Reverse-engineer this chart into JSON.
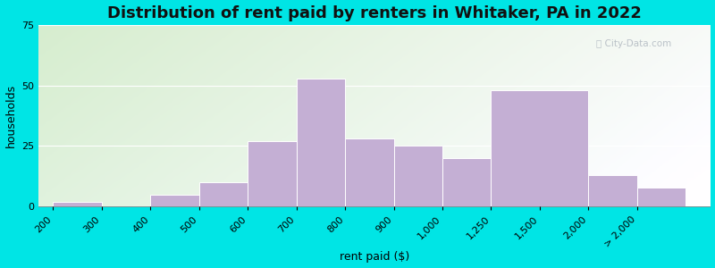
{
  "title": "Distribution of rent paid by renters in Whitaker, PA in 2022",
  "xlabel": "rent paid ($)",
  "ylabel": "households",
  "bar_color": "#c4afd4",
  "bar_edgecolor": "#ffffff",
  "background_outer": "#00e5e5",
  "ylim": [
    0,
    75
  ],
  "yticks": [
    0,
    25,
    50,
    75
  ],
  "tick_labels": [
    "200",
    "300",
    "400",
    "500",
    "600",
    "700",
    "800",
    "900",
    "1,000",
    "1,250",
    "1,500",
    "2,000",
    "> 2,000"
  ],
  "tick_positions": [
    0,
    1,
    2,
    3,
    4,
    5,
    6,
    7,
    8,
    9,
    10,
    11,
    12
  ],
  "bar_lefts": [
    0,
    1,
    2,
    3,
    4,
    5,
    6,
    7,
    8,
    9,
    11,
    12
  ],
  "bar_widths": [
    1,
    1,
    1,
    1,
    1,
    1,
    1,
    1,
    1,
    2,
    1,
    1
  ],
  "values": [
    2,
    0,
    5,
    10,
    27,
    53,
    28,
    25,
    20,
    48,
    13,
    8
  ],
  "title_fontsize": 13,
  "axis_label_fontsize": 9,
  "tick_fontsize": 8,
  "watermark_text": "ⓘ City-Data.com",
  "watermark_color": "#b0b8c0"
}
